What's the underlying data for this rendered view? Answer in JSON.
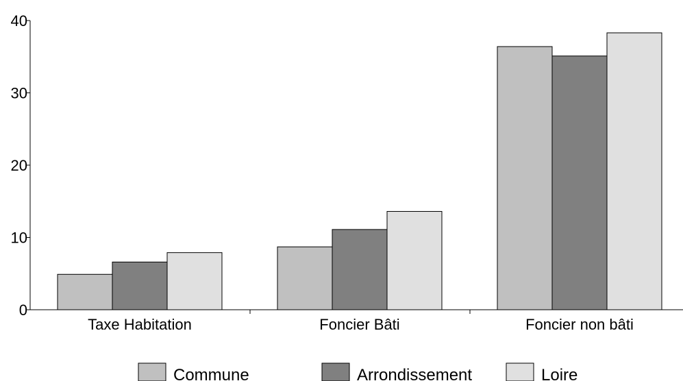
{
  "chart_data": {
    "type": "bar",
    "categories": [
      "Taxe Habitation",
      "Foncier Bâti",
      "Foncier non bâti"
    ],
    "series": [
      {
        "name": "Commune",
        "color": "#c0c0c0",
        "values": [
          4.9,
          8.7,
          36.4
        ]
      },
      {
        "name": "Arrondissement",
        "color": "#808080",
        "values": [
          6.6,
          11.1,
          35.1
        ]
      },
      {
        "name": "Loire",
        "color": "#e0e0e0",
        "values": [
          7.9,
          13.6,
          38.3
        ]
      }
    ],
    "ylim": [
      0,
      40
    ],
    "yticks": [
      "0",
      "10",
      "20",
      "30",
      "40"
    ],
    "grid": false,
    "legend": "bottom-center"
  }
}
